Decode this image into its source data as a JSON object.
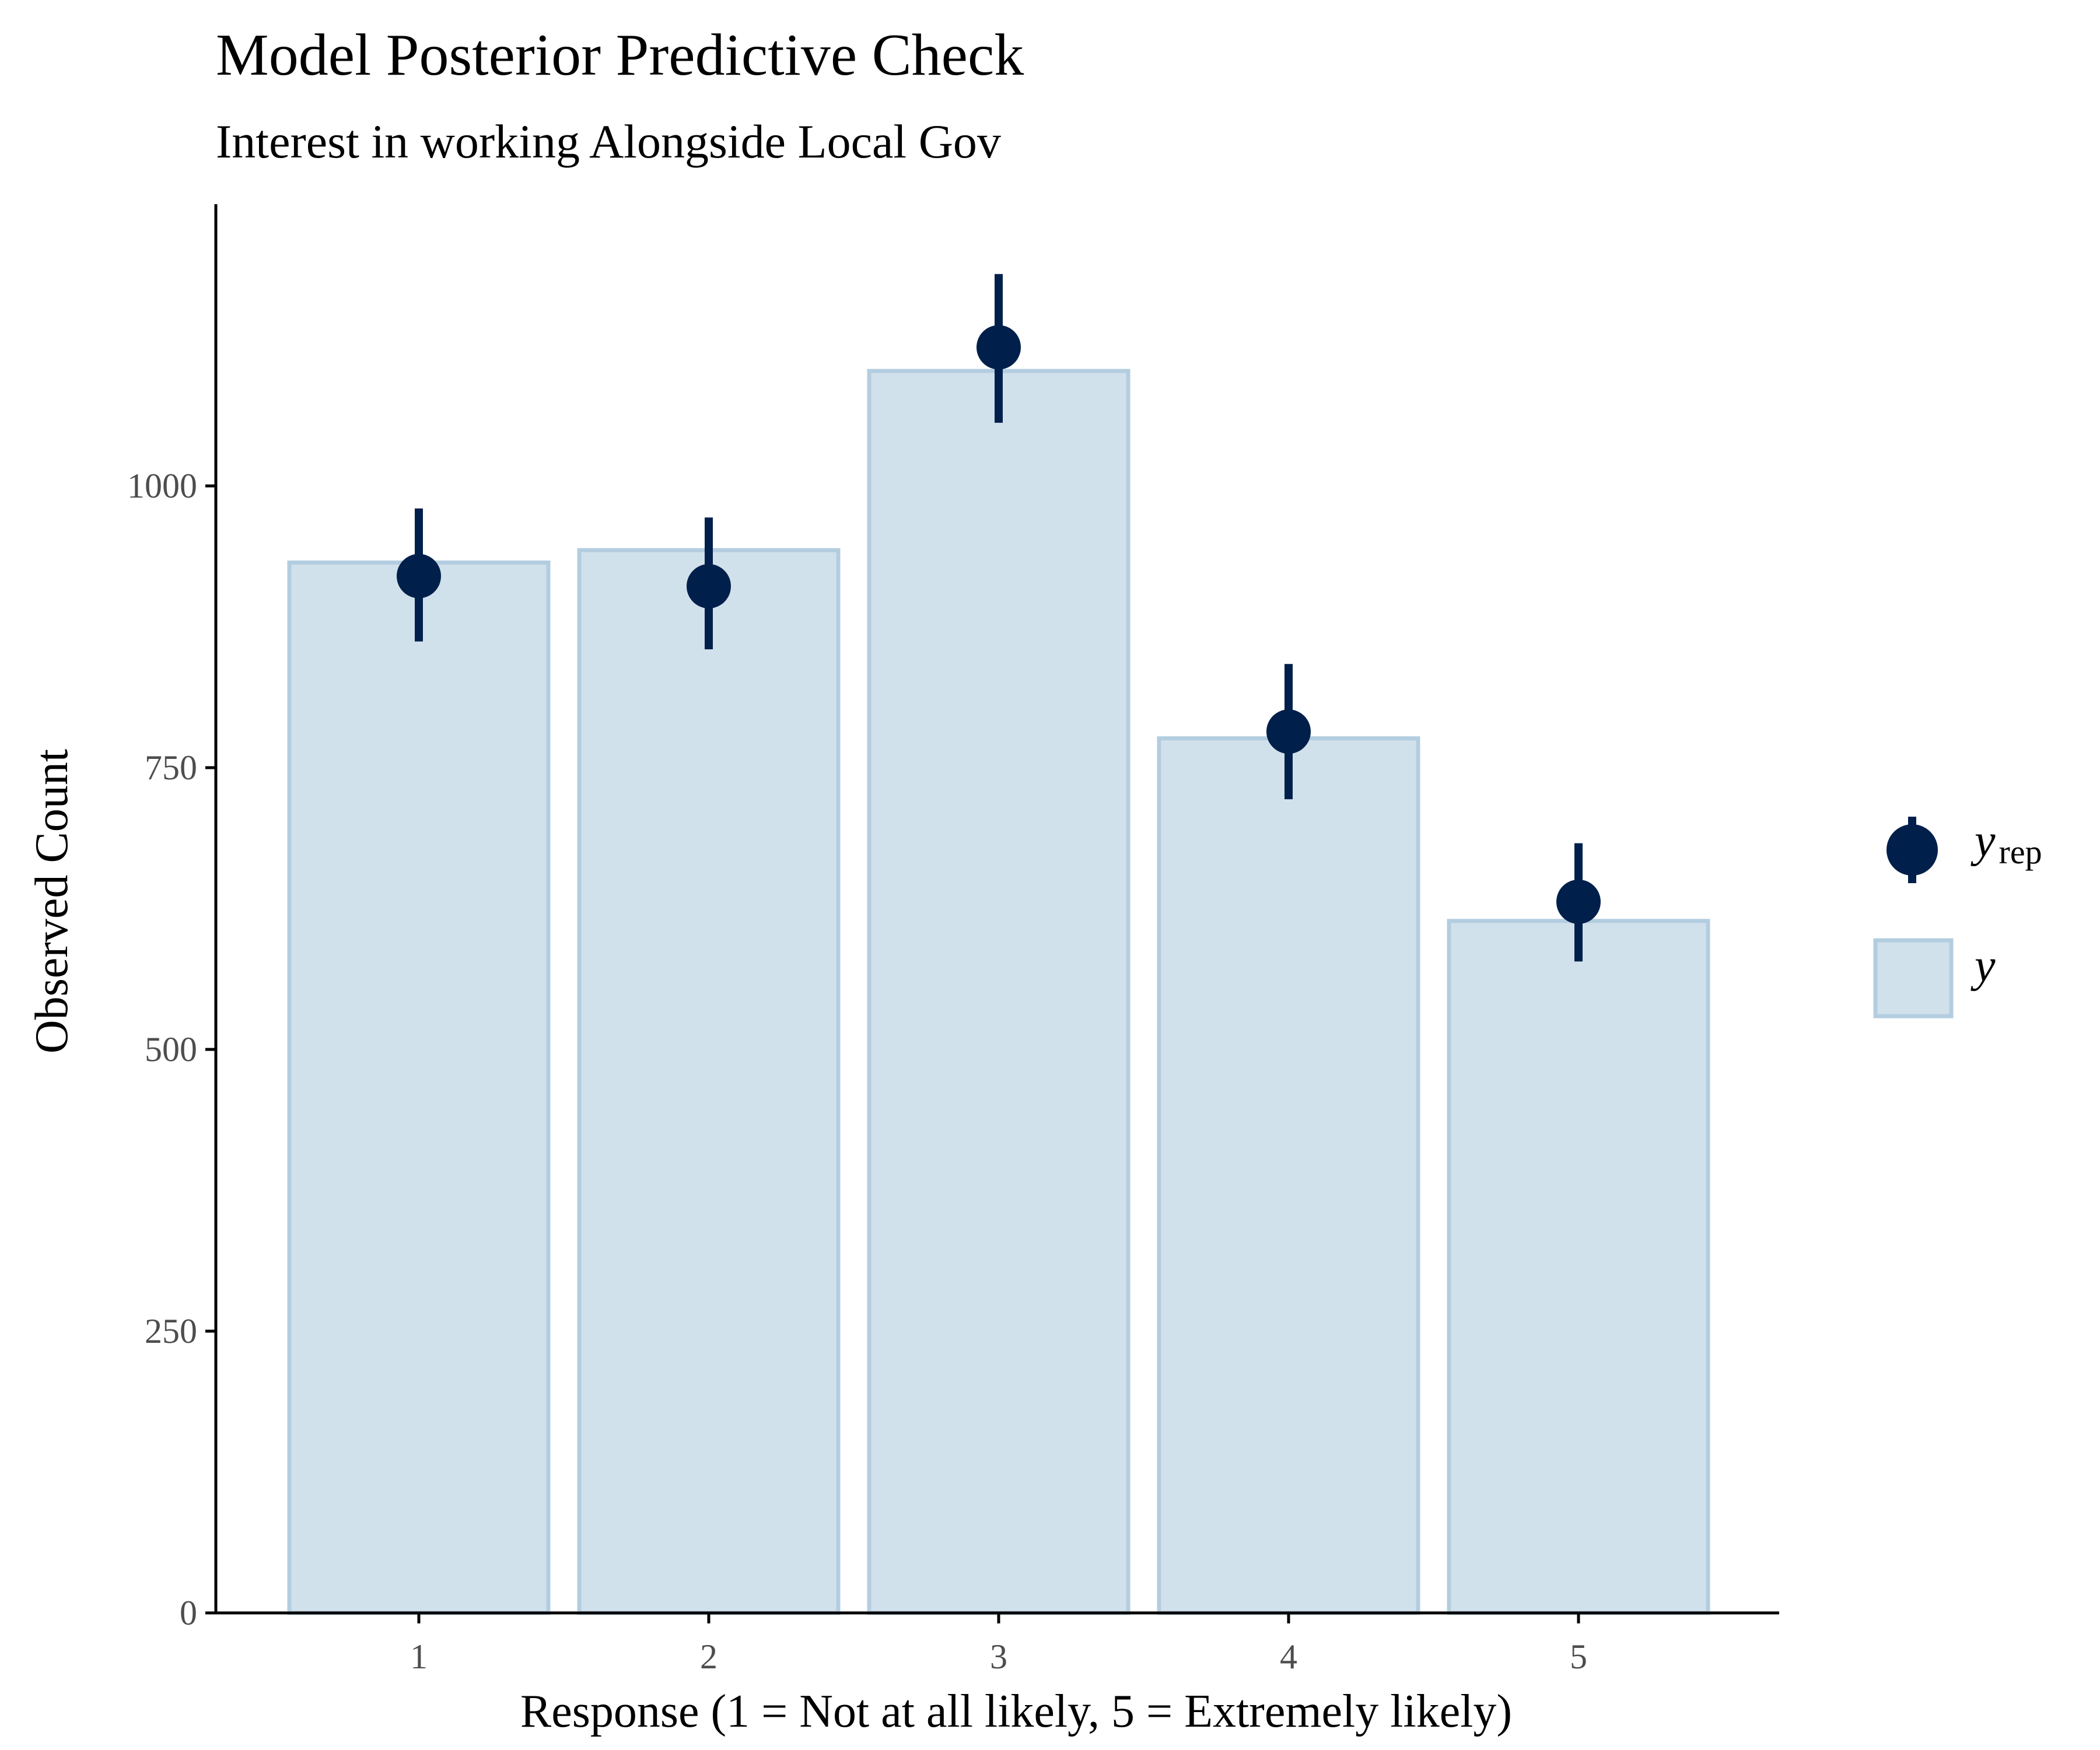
{
  "chart_data": {
    "type": "bar",
    "title": "Model Posterior Predictive Check",
    "subtitle": "Interest in working Alongside Local Gov",
    "xlabel": "Response (1 = Not at all likely, 5 = Extremely likely)",
    "ylabel": "Observed Count",
    "categories": [
      "1",
      "2",
      "3",
      "4",
      "5"
    ],
    "ylim": [
      0,
      1250
    ],
    "yticks": [
      0,
      250,
      500,
      750,
      1000
    ],
    "grid": false,
    "legend_position": "right",
    "series": [
      {
        "name": "y",
        "kind": "bar",
        "values": [
          932,
          943,
          1102,
          776,
          614
        ]
      },
      {
        "name": "yrep",
        "kind": "pointrange",
        "values": [
          920,
          911,
          1123,
          782,
          631
        ],
        "lower": [
          862,
          855,
          1056,
          722,
          578
        ],
        "upper": [
          980,
          972,
          1188,
          842,
          683
        ]
      }
    ],
    "legend": [
      {
        "symbol": "y",
        "subscript": "rep"
      },
      {
        "symbol": "y",
        "subscript": ""
      }
    ],
    "colors": {
      "bar_fill": "#d1e1ec",
      "bar_stroke": "#b3cde0",
      "point": "#011f4b",
      "axis": "#000000",
      "tick_text": "#4d4d4d"
    }
  }
}
